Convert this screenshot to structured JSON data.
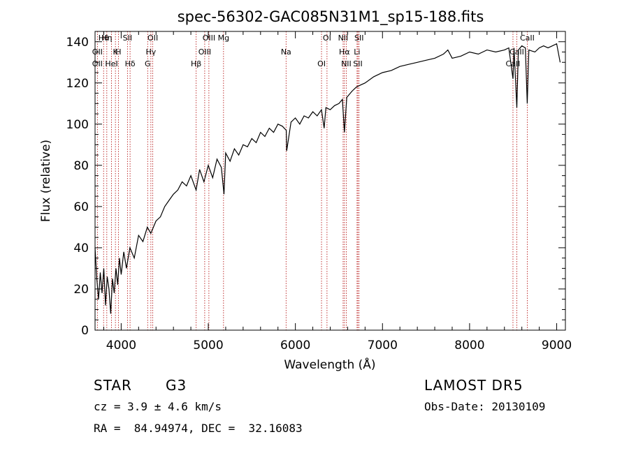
{
  "chart_data": {
    "type": "line",
    "title": "spec-56302-GAC085N31M1_sp15-188.fits",
    "xlabel": "Wavelength (Å)",
    "ylabel": "Flux (relative)",
    "xlim": [
      3700,
      9100
    ],
    "ylim": [
      0,
      145
    ],
    "xticks": [
      4000,
      5000,
      6000,
      7000,
      8000,
      9000
    ],
    "yticks": [
      0,
      20,
      40,
      60,
      80,
      100,
      120,
      140
    ],
    "grid": false,
    "series": [
      {
        "x": [
          3700,
          3720,
          3740,
          3760,
          3780,
          3800,
          3820,
          3840,
          3860,
          3880,
          3900,
          3920,
          3940,
          3960,
          3980,
          4000,
          4030,
          4060,
          4100,
          4150,
          4200,
          4250,
          4300,
          4340,
          4400,
          4450,
          4500,
          4550,
          4600,
          4650,
          4700,
          4750,
          4800,
          4860,
          4900,
          4950,
          5000,
          5050,
          5100,
          5150,
          5180,
          5200,
          5250,
          5300,
          5350,
          5400,
          5450,
          5500,
          5550,
          5600,
          5650,
          5700,
          5750,
          5800,
          5850,
          5895,
          5900,
          5950,
          6000,
          6050,
          6100,
          6150,
          6200,
          6250,
          6300,
          6330,
          6350,
          6400,
          6450,
          6500,
          6540,
          6563,
          6590,
          6650,
          6700,
          6750,
          6800,
          6900,
          7000,
          7100,
          7200,
          7300,
          7400,
          7500,
          7600,
          7700,
          7750,
          7800,
          7900,
          8000,
          8100,
          8200,
          8300,
          8400,
          8450,
          8498,
          8510,
          8542,
          8560,
          8600,
          8640,
          8662,
          8680,
          8750,
          8800,
          8850,
          8900,
          8950,
          9000,
          9040
        ],
        "y": [
          40,
          25,
          15,
          28,
          18,
          30,
          12,
          26,
          20,
          8,
          25,
          18,
          30,
          22,
          35,
          27,
          38,
          30,
          40,
          35,
          46,
          43,
          50,
          47,
          53,
          55,
          60,
          63,
          66,
          68,
          72,
          70,
          75,
          68,
          78,
          72,
          80,
          74,
          83,
          79,
          66,
          86,
          82,
          88,
          85,
          90,
          89,
          93,
          91,
          96,
          94,
          98,
          96,
          100,
          99,
          97,
          87,
          101,
          103,
          100,
          104,
          103,
          106,
          104,
          107,
          98,
          108,
          107,
          109,
          110,
          112,
          96,
          113,
          116,
          118,
          119,
          120,
          123,
          125,
          126,
          128,
          129,
          130,
          131,
          132,
          134,
          136,
          132,
          133,
          135,
          134,
          136,
          135,
          136,
          137,
          122,
          137,
          108,
          136,
          138,
          137,
          110,
          136,
          135,
          137,
          138,
          137,
          138,
          139,
          130
        ]
      }
    ],
    "line_markers": [
      {
        "label": "Hθ",
        "wave": 3798
      },
      {
        "label": "K",
        "wave": 3934
      },
      {
        "label": "Hδ",
        "wave": 4102
      },
      {
        "label": "OII",
        "wave": 4363
      },
      {
        "label": "OII",
        "wave": 3727
      },
      {
        "label": "HeI",
        "wave": 3889
      },
      {
        "label": "SII",
        "wave": 4072
      },
      {
        "label": "Hγ",
        "wave": 4341
      },
      {
        "label": "OII",
        "wave": 3727
      },
      {
        "label": "Hη",
        "wave": 3835
      },
      {
        "label": "H",
        "wave": 3968
      },
      {
        "label": "G",
        "wave": 4304
      },
      {
        "label": "OIII",
        "wave": 5007
      },
      {
        "label": "OIII",
        "wave": 4959
      },
      {
        "label": "Hβ",
        "wave": 4861
      },
      {
        "label": "Mg",
        "wave": 5175
      },
      {
        "label": "Na",
        "wave": 5893
      },
      {
        "label": "OI",
        "wave": 6300
      },
      {
        "label": "OI",
        "wave": 6363
      },
      {
        "label": "Hα",
        "wave": 6563
      },
      {
        "label": "SII",
        "wave": 6717
      },
      {
        "label": "NII",
        "wave": 6548
      },
      {
        "label": "Li",
        "wave": 6708
      },
      {
        "label": "NII",
        "wave": 6584
      },
      {
        "label": "SII",
        "wave": 6731
      },
      {
        "label": "CaII",
        "wave": 8542
      },
      {
        "label": "CaII",
        "wave": 8498
      },
      {
        "label": "CaII",
        "wave": 8662
      }
    ]
  },
  "info": {
    "object_class": "STAR",
    "subclass": "G3",
    "survey": "LAMOST DR5",
    "redshift": "cz = 3.9 ± 4.6 km/s",
    "obs_date": "Obs-Date: 20130109",
    "coords": "RA =  84.94974, DEC =  32.16083"
  }
}
